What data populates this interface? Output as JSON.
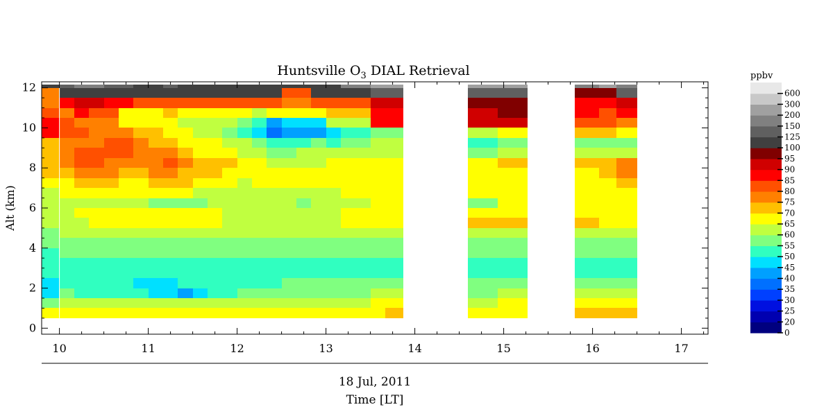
{
  "chart_data": {
    "type": "heatmap",
    "title": "Huntsville O",
    "title_sub": "3",
    "title_rest": " DIAL Retrieval",
    "ylabel": "Alt (km)",
    "date_label": "18 Jul, 2011",
    "xlabel": "Time [LT]",
    "xlim": [
      9.8,
      17.3
    ],
    "ylim": [
      -0.3,
      12.3
    ],
    "x_ticks": [
      10,
      11,
      12,
      13,
      14,
      15,
      16,
      17
    ],
    "y_ticks": [
      0,
      2,
      4,
      6,
      8,
      10,
      12
    ],
    "colorbar": {
      "unit": "ppbv",
      "labels": [
        "0",
        "20",
        "25",
        "30",
        "35",
        "40",
        "45",
        "50",
        "55",
        "60",
        "65",
        "70",
        "75",
        "80",
        "85",
        "90",
        "95",
        "100",
        "125",
        "150",
        "200",
        "300",
        "600"
      ],
      "colors": [
        "#00007f",
        "#0000b0",
        "#0010e0",
        "#0040ff",
        "#0070ff",
        "#00a0ff",
        "#00e0ff",
        "#30ffc0",
        "#80ff80",
        "#c0ff40",
        "#ffff00",
        "#ffc000",
        "#ff8000",
        "#ff5000",
        "#ff0000",
        "#d00000",
        "#800000",
        "#404040",
        "#606060",
        "#808080",
        "#a0a0a0",
        "#c8c8c8",
        "#e8e8e8"
      ]
    },
    "altitudes": [
      0.5,
      1.0,
      1.5,
      2.0,
      2.5,
      3.0,
      3.5,
      4.0,
      4.5,
      5.0,
      5.5,
      6.0,
      6.5,
      7.0,
      7.5,
      8.0,
      8.5,
      9.0,
      9.5,
      10.0,
      10.5,
      11.0,
      11.5,
      12.0
    ],
    "profiles": [
      {
        "t0": 9.8,
        "t1": 10.0,
        "c": [
          10,
          8,
          6,
          6,
          7,
          7,
          7,
          8,
          8,
          9,
          9,
          9,
          9,
          10,
          11,
          11,
          11,
          11,
          14,
          14,
          13,
          12,
          12,
          17
        ]
      },
      {
        "t0": 10.0,
        "t1": 10.17,
        "c": [
          10,
          9,
          8,
          7,
          7,
          7,
          8,
          8,
          9,
          9,
          9,
          9,
          10,
          10,
          11,
          12,
          12,
          12,
          13,
          13,
          12,
          14,
          17,
          18
        ]
      },
      {
        "t0": 10.17,
        "t1": 10.33,
        "c": [
          10,
          9,
          7,
          7,
          7,
          7,
          8,
          8,
          9,
          9,
          10,
          9,
          10,
          11,
          12,
          13,
          13,
          12,
          13,
          12,
          14,
          15,
          17,
          19
        ]
      },
      {
        "t0": 10.33,
        "t1": 10.5,
        "c": [
          10,
          9,
          7,
          7,
          7,
          7,
          8,
          8,
          9,
          10,
          10,
          9,
          10,
          11,
          12,
          13,
          13,
          12,
          12,
          12,
          13,
          15,
          17,
          19
        ]
      },
      {
        "t0": 10.5,
        "t1": 10.67,
        "c": [
          10,
          9,
          7,
          7,
          7,
          7,
          8,
          8,
          9,
          10,
          10,
          9,
          10,
          11,
          12,
          12,
          13,
          13,
          12,
          12,
          13,
          14,
          17,
          18
        ]
      },
      {
        "t0": 10.67,
        "t1": 10.83,
        "c": [
          10,
          9,
          7,
          7,
          7,
          7,
          8,
          8,
          9,
          10,
          10,
          9,
          10,
          10,
          11,
          12,
          13,
          13,
          12,
          10,
          10,
          14,
          17,
          18
        ]
      },
      {
        "t0": 10.83,
        "t1": 11.0,
        "c": [
          10,
          9,
          7,
          6,
          7,
          7,
          8,
          8,
          9,
          10,
          10,
          9,
          10,
          10,
          11,
          12,
          12,
          12,
          11,
          10,
          10,
          13,
          17,
          17
        ]
      },
      {
        "t0": 11.0,
        "t1": 11.17,
        "c": [
          10,
          9,
          6,
          6,
          7,
          7,
          8,
          8,
          9,
          10,
          10,
          8,
          10,
          11,
          12,
          12,
          12,
          11,
          11,
          10,
          10,
          13,
          17,
          17
        ]
      },
      {
        "t0": 11.17,
        "t1": 11.33,
        "c": [
          10,
          9,
          6,
          6,
          7,
          7,
          8,
          8,
          9,
          10,
          10,
          8,
          10,
          11,
          12,
          13,
          12,
          11,
          10,
          10,
          11,
          13,
          17,
          18
        ]
      },
      {
        "t0": 11.33,
        "t1": 11.5,
        "c": [
          10,
          9,
          5,
          7,
          7,
          7,
          8,
          8,
          9,
          10,
          10,
          8,
          10,
          11,
          11,
          12,
          11,
          10,
          10,
          9,
          10,
          13,
          17,
          17
        ]
      },
      {
        "t0": 11.5,
        "t1": 11.67,
        "c": [
          10,
          9,
          6,
          7,
          7,
          7,
          8,
          8,
          9,
          10,
          10,
          8,
          9,
          10,
          11,
          11,
          10,
          10,
          9,
          9,
          10,
          13,
          17,
          17
        ]
      },
      {
        "t0": 11.67,
        "t1": 11.83,
        "c": [
          10,
          9,
          7,
          7,
          7,
          7,
          8,
          8,
          9,
          10,
          10,
          9,
          9,
          10,
          11,
          11,
          10,
          10,
          9,
          9,
          10,
          13,
          17,
          17
        ]
      },
      {
        "t0": 11.83,
        "t1": 12.0,
        "c": [
          10,
          9,
          7,
          7,
          7,
          7,
          8,
          8,
          9,
          9,
          9,
          9,
          9,
          10,
          10,
          11,
          10,
          9,
          8,
          9,
          10,
          13,
          17,
          17
        ]
      },
      {
        "t0": 12.0,
        "t1": 12.17,
        "c": [
          10,
          9,
          8,
          7,
          7,
          7,
          8,
          8,
          9,
          9,
          9,
          9,
          9,
          9,
          10,
          10,
          9,
          9,
          7,
          8,
          10,
          13,
          17,
          17
        ]
      },
      {
        "t0": 12.17,
        "t1": 12.33,
        "c": [
          10,
          9,
          8,
          7,
          7,
          7,
          8,
          8,
          9,
          9,
          9,
          9,
          9,
          10,
          10,
          10,
          9,
          8,
          6,
          7,
          9,
          13,
          17,
          17
        ]
      },
      {
        "t0": 12.33,
        "t1": 12.5,
        "c": [
          10,
          9,
          8,
          7,
          7,
          7,
          8,
          8,
          9,
          9,
          9,
          9,
          9,
          10,
          10,
          9,
          8,
          7,
          4,
          5,
          10,
          13,
          17,
          17
        ]
      },
      {
        "t0": 12.5,
        "t1": 12.67,
        "c": [
          10,
          9,
          8,
          8,
          7,
          7,
          8,
          8,
          9,
          9,
          9,
          9,
          9,
          10,
          10,
          9,
          8,
          7,
          5,
          6,
          10,
          12,
          13,
          17
        ]
      },
      {
        "t0": 12.67,
        "t1": 12.83,
        "c": [
          10,
          9,
          8,
          8,
          7,
          7,
          8,
          8,
          9,
          9,
          9,
          8,
          9,
          10,
          10,
          9,
          9,
          7,
          5,
          6,
          10,
          12,
          13,
          17
        ]
      },
      {
        "t0": 12.83,
        "t1": 13.0,
        "c": [
          10,
          9,
          8,
          8,
          7,
          7,
          8,
          8,
          9,
          9,
          9,
          9,
          9,
          10,
          10,
          9,
          9,
          8,
          5,
          6,
          10,
          13,
          17,
          17
        ]
      },
      {
        "t0": 13.0,
        "t1": 13.17,
        "c": [
          10,
          9,
          8,
          8,
          7,
          7,
          8,
          8,
          9,
          9,
          9,
          9,
          9,
          10,
          10,
          10,
          9,
          7,
          6,
          9,
          11,
          13,
          17,
          17
        ]
      },
      {
        "t0": 13.17,
        "t1": 13.33,
        "c": [
          10,
          9,
          8,
          8,
          7,
          7,
          8,
          8,
          9,
          10,
          10,
          9,
          10,
          10,
          10,
          10,
          9,
          8,
          7,
          9,
          11,
          13,
          17,
          19
        ]
      },
      {
        "t0": 13.33,
        "t1": 13.5,
        "c": [
          10,
          9,
          8,
          8,
          7,
          7,
          8,
          8,
          9,
          10,
          10,
          9,
          10,
          10,
          10,
          10,
          9,
          8,
          7,
          9,
          11,
          13,
          17,
          19
        ]
      },
      {
        "t0": 13.5,
        "t1": 13.67,
        "c": [
          10,
          10,
          9,
          8,
          7,
          7,
          8,
          8,
          9,
          10,
          10,
          10,
          10,
          10,
          10,
          10,
          9,
          9,
          8,
          14,
          14,
          15,
          18,
          20
        ]
      },
      {
        "t0": 13.67,
        "t1": 13.87,
        "c": [
          11,
          10,
          9,
          8,
          7,
          7,
          8,
          8,
          9,
          10,
          10,
          10,
          10,
          10,
          10,
          10,
          9,
          9,
          8,
          14,
          14,
          15,
          18,
          20
        ]
      },
      {
        "t0": 14.6,
        "t1": 14.93,
        "c": [
          10,
          9,
          8,
          8,
          7,
          7,
          8,
          8,
          9,
          11,
          10,
          8,
          10,
          10,
          10,
          10,
          8,
          7,
          9,
          15,
          15,
          16,
          18,
          20
        ]
      },
      {
        "t0": 14.93,
        "t1": 15.27,
        "c": [
          10,
          10,
          9,
          8,
          7,
          7,
          8,
          8,
          9,
          11,
          10,
          10,
          10,
          10,
          10,
          11,
          9,
          8,
          10,
          15,
          16,
          16,
          18,
          20
        ]
      },
      {
        "t0": 15.8,
        "t1": 16.07,
        "c": [
          11,
          10,
          9,
          8,
          7,
          7,
          8,
          8,
          9,
          11,
          10,
          10,
          10,
          10,
          10,
          11,
          9,
          8,
          11,
          13,
          14,
          14,
          16,
          19
        ]
      },
      {
        "t0": 16.07,
        "t1": 16.27,
        "c": [
          11,
          10,
          9,
          8,
          7,
          7,
          8,
          8,
          9,
          10,
          10,
          10,
          10,
          10,
          11,
          11,
          9,
          8,
          11,
          13,
          13,
          14,
          16,
          20
        ]
      },
      {
        "t0": 16.27,
        "t1": 16.5,
        "c": [
          11,
          10,
          9,
          8,
          7,
          7,
          8,
          8,
          9,
          10,
          10,
          10,
          10,
          11,
          12,
          12,
          9,
          8,
          10,
          12,
          14,
          15,
          18,
          19
        ]
      }
    ]
  }
}
